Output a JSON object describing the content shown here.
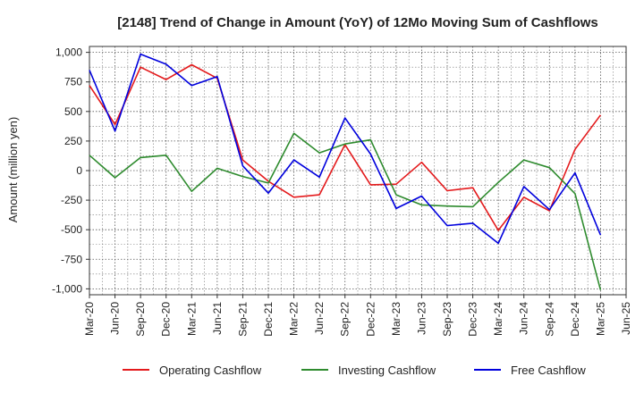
{
  "chart_data": {
    "type": "line",
    "title": "[2148]  Trend of Change in Amount (YoY) of 12Mo Moving Sum of Cashflows",
    "xlabel": "",
    "ylabel": "Amount (million yen)",
    "ylim": [
      -1050,
      1050
    ],
    "yticks": [
      1000,
      750,
      500,
      250,
      0,
      -250,
      -500,
      -750,
      -1000
    ],
    "ytick_labels": [
      "1,000",
      "750",
      "500",
      "250",
      "0",
      "-250",
      "-500",
      "-750",
      "-1,000"
    ],
    "categories": [
      "Mar-20",
      "Jun-20",
      "Sep-20",
      "Dec-20",
      "Mar-21",
      "Jun-21",
      "Sep-21",
      "Dec-21",
      "Mar-22",
      "Jun-22",
      "Sep-22",
      "Dec-22",
      "Mar-23",
      "Jun-23",
      "Sep-23",
      "Dec-23",
      "Mar-24",
      "Jun-24",
      "Sep-24",
      "Dec-24",
      "Mar-25",
      "Jun-25"
    ],
    "grid": true,
    "legend_position": "bottom",
    "series": [
      {
        "name": "Operating Cashflow",
        "color": "#e41a1c",
        "values": [
          720,
          390,
          875,
          770,
          895,
          780,
          90,
          -90,
          -225,
          -205,
          220,
          -120,
          -115,
          70,
          -170,
          -145,
          -505,
          -225,
          -340,
          180,
          470,
          null
        ]
      },
      {
        "name": "Investing Cashflow",
        "color": "#2e8b2e",
        "values": [
          130,
          -60,
          110,
          130,
          -175,
          20,
          -50,
          -105,
          315,
          150,
          225,
          260,
          -205,
          -290,
          -300,
          -305,
          -100,
          90,
          25,
          -195,
          -1010,
          null
        ]
      },
      {
        "name": "Free Cashflow",
        "color": "#0000dd",
        "values": [
          850,
          335,
          985,
          900,
          720,
          795,
          40,
          -190,
          90,
          -55,
          445,
          140,
          -320,
          -215,
          -465,
          -445,
          -615,
          -135,
          -330,
          -20,
          -545,
          null
        ]
      }
    ]
  }
}
